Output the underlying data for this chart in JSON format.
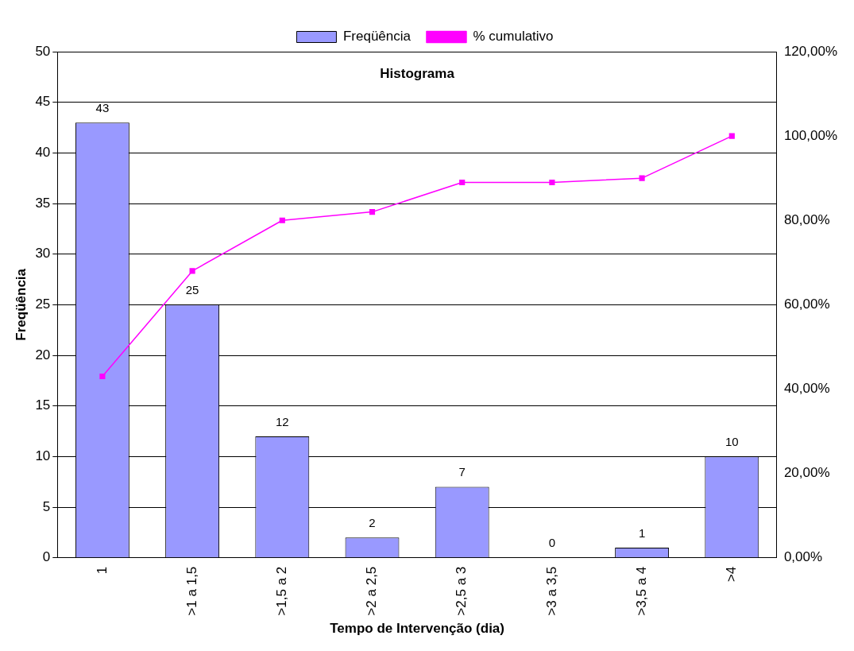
{
  "chart_data": {
    "type": "bar",
    "title": "Histograma",
    "xlabel": "Tempo de Intervenção (dia)",
    "ylabel": "Freqüência",
    "categories": [
      "1",
      ">1 a 1,5",
      ">1,5 a 2",
      ">2 a 2,5",
      ">2,5 a 3",
      ">3 a 3,5",
      ">3,5 a 4",
      ">4"
    ],
    "series": [
      {
        "name": "Freqüência",
        "color": "#9999ff",
        "values": [
          43,
          25,
          12,
          2,
          7,
          0,
          1,
          10
        ],
        "value_labels": [
          "43",
          "25",
          "12",
          "2",
          "7",
          "0",
          "1",
          "10"
        ]
      },
      {
        "name": "% cumulativo",
        "type": "line",
        "axis": "y2",
        "color": "#ff00ff",
        "marker": "square",
        "values": [
          43,
          68,
          80,
          82,
          89,
          89,
          90,
          100
        ]
      }
    ],
    "ylim": [
      0,
      50
    ],
    "yticks": [
      0,
      5,
      10,
      15,
      20,
      25,
      30,
      35,
      40,
      45,
      50
    ],
    "y2lim": [
      0,
      120
    ],
    "y2ticks": [
      {
        "value": 0,
        "label": "0,00%"
      },
      {
        "value": 20,
        "label": "20,00%"
      },
      {
        "value": 40,
        "label": "40,00%"
      },
      {
        "value": 60,
        "label": "60,00%"
      },
      {
        "value": 80,
        "label": "80,00%"
      },
      {
        "value": 100,
        "label": "100,00%"
      },
      {
        "value": 120,
        "label": "120,00%"
      }
    ],
    "grid": "y",
    "legend": "top"
  }
}
